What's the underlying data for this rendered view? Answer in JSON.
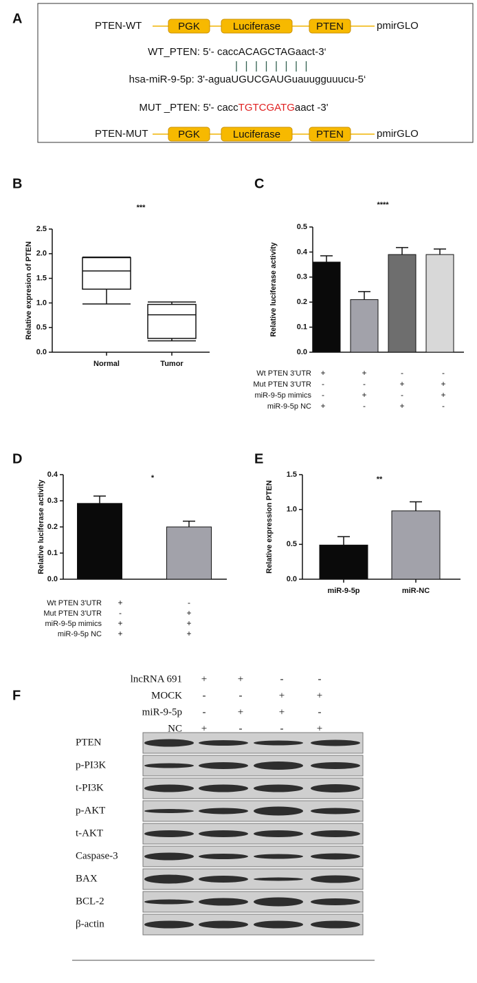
{
  "panel_labels": [
    "A",
    "B",
    "C",
    "D",
    "E",
    "F"
  ],
  "panel_a": {
    "wt_label": "PTEN-WT",
    "mut_label": "PTEN-MUT",
    "elements": [
      "PGK",
      "Luciferase",
      "PTEN"
    ],
    "vector": "pmirGLO",
    "wt_seq": "WT_PTEN: 5‘- caccACAGCTAGaact-3‘",
    "mirna_seq": "hsa-miR-9-5p: 3'-aguaUGUCGAUGuauugguuucu-5‘",
    "mut_seq": {
      "prefix": "MUT _PTEN: 5'- cacc",
      "mutation": "TGTCGATG",
      "suffix": "aact -3'"
    }
  },
  "chart_data": [
    {
      "type": "box",
      "title": "***",
      "ylabel": "Relative expresion of PTEN",
      "categories": [
        "Normal",
        "Tumor"
      ],
      "boxes": [
        {
          "min": 0.98,
          "q1": 1.28,
          "median": 1.65,
          "q3": 1.92,
          "max": 1.93
        },
        {
          "min": 0.23,
          "q1": 0.28,
          "median": 0.76,
          "q3": 0.97,
          "max": 1.02
        }
      ],
      "ylim": [
        0,
        2.5
      ],
      "yticks": [
        {
          "value": 0,
          "label": "0.0"
        },
        {
          "value": 0.5,
          "label": "0.5"
        },
        {
          "value": 1,
          "label": "1.0"
        },
        {
          "value": 1.5,
          "label": "1.5"
        },
        {
          "value": 2,
          "label": "2.0"
        },
        {
          "value": 2.5,
          "label": "2.5"
        }
      ]
    },
    {
      "type": "bar",
      "title": "****",
      "ylabel": "Relative luciferase activity",
      "values": [
        0.36,
        0.21,
        0.39,
        0.39
      ],
      "errors": [
        0.025,
        0.032,
        0.028,
        0.022
      ],
      "colors": [
        "#0a0a0a",
        "#a2a2aa",
        "#6e6e6e",
        "#d8d8d8"
      ],
      "ylim": [
        0,
        0.5
      ],
      "yticks": [
        {
          "value": 0,
          "label": "0.0"
        },
        {
          "value": 0.1,
          "label": "0.1"
        },
        {
          "value": 0.2,
          "label": "0.2"
        },
        {
          "value": 0.3,
          "label": "0.3"
        },
        {
          "value": 0.4,
          "label": "0.4"
        },
        {
          "value": 0.5,
          "label": "0.5"
        }
      ],
      "conditions": {
        "rows": [
          "Wt PTEN 3'UTR",
          "Mut PTEN 3'UTR",
          "miR-9-5p mimics",
          "miR-9-5p NC"
        ],
        "values": [
          [
            "+",
            "+",
            "-",
            "-"
          ],
          [
            "-",
            "-",
            "+",
            "+"
          ],
          [
            "-",
            "+",
            "-",
            "+"
          ],
          [
            "+",
            "-",
            "+",
            "-"
          ]
        ]
      }
    },
    {
      "type": "bar",
      "title": "*",
      "ylabel": "Relative luciferase activity",
      "values": [
        0.29,
        0.2
      ],
      "errors": [
        0.028,
        0.022
      ],
      "colors": [
        "#0a0a0a",
        "#a2a2aa"
      ],
      "ylim": [
        0,
        0.4
      ],
      "yticks": [
        {
          "value": 0,
          "label": "0.0"
        },
        {
          "value": 0.1,
          "label": "0.1"
        },
        {
          "value": 0.2,
          "label": "0.2"
        },
        {
          "value": 0.3,
          "label": "0.3"
        },
        {
          "value": 0.4,
          "label": "0.4"
        }
      ],
      "conditions": {
        "rows": [
          "Wt PTEN 3'UTR",
          "Mut PTEN 3'UTR",
          "miR-9-5p mimics",
          "miR-9-5p NC"
        ],
        "values": [
          [
            "+",
            "-"
          ],
          [
            "-",
            "+"
          ],
          [
            "+",
            "+"
          ],
          [
            "+",
            "+"
          ]
        ]
      }
    },
    {
      "type": "bar",
      "title": "**",
      "ylabel": "Relative expression PTEN",
      "categories": [
        "miR-9-5p",
        "miR-NC"
      ],
      "values": [
        0.49,
        0.98
      ],
      "errors": [
        0.12,
        0.13
      ],
      "colors": [
        "#0a0a0a",
        "#a2a2aa"
      ],
      "ylim": [
        0,
        1.5
      ],
      "yticks": [
        {
          "value": 0,
          "label": "0.0"
        },
        {
          "value": 0.5,
          "label": "0.5"
        },
        {
          "value": 1,
          "label": "1.0"
        },
        {
          "value": 1.5,
          "label": "1.5"
        }
      ]
    }
  ],
  "panel_f": {
    "conditions": {
      "rows": [
        "lncRNA 691",
        "MOCK",
        "miR-9-5p",
        "NC"
      ],
      "values": [
        [
          "+",
          "+",
          "-",
          "-"
        ],
        [
          "-",
          "-",
          "+",
          "+"
        ],
        [
          "-",
          "+",
          "+",
          "-"
        ],
        [
          "+",
          "-",
          "-",
          "+"
        ]
      ]
    },
    "proteins": [
      "PTEN",
      "p-PI3K",
      "t-PI3K",
      "p-AKT",
      "t-AKT",
      "Caspase-3",
      "BAX",
      "BCL-2",
      "β-actin"
    ]
  }
}
